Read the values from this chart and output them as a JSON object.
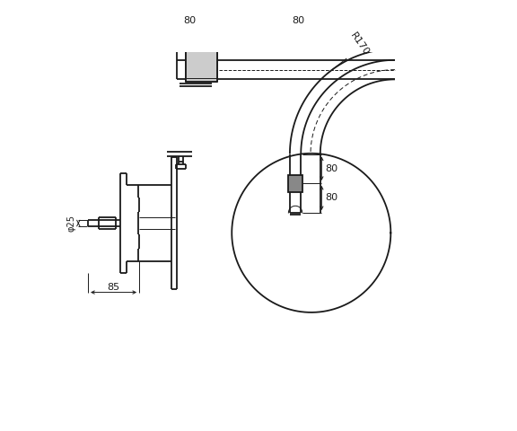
{
  "bg_color": "#ffffff",
  "line_color": "#1a1a1a",
  "lw": 1.3,
  "lw_thin": 0.7,
  "lw_dim": 0.7,
  "figsize": [
    5.76,
    4.8
  ],
  "dpi": 100,
  "xlim": [
    0,
    576
  ],
  "ylim": [
    0,
    480
  ]
}
